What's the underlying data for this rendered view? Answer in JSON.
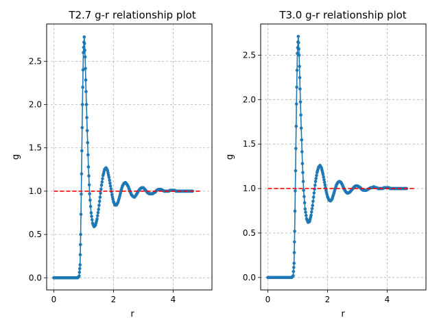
{
  "chart_data": [
    {
      "type": "line",
      "title": "T2.7 g-r relationship plot",
      "xlabel": "r",
      "ylabel": "g",
      "xlim": [
        -0.24,
        5.3
      ],
      "ylim": [
        -0.14,
        2.93
      ],
      "xticks": [
        0,
        2,
        4
      ],
      "yticks": [
        0.0,
        0.5,
        1.0,
        1.5,
        2.0,
        2.5
      ],
      "grid": true,
      "series": [
        {
          "style": "line-with-markers",
          "color": "#1f77b4",
          "x": [
            0.0,
            0.1,
            0.2,
            0.3,
            0.4,
            0.5,
            0.6,
            0.7,
            0.8,
            0.85,
            0.88,
            0.9,
            0.93,
            0.96,
            0.99,
            1.02,
            1.05,
            1.08,
            1.12,
            1.16,
            1.2,
            1.25,
            1.3,
            1.35,
            1.4,
            1.45,
            1.5,
            1.55,
            1.6,
            1.65,
            1.7,
            1.75,
            1.8,
            1.85,
            1.9,
            1.95,
            2.0,
            2.05,
            2.1,
            2.15,
            2.2,
            2.25,
            2.3,
            2.35,
            2.4,
            2.45,
            2.5,
            2.55,
            2.6,
            2.65,
            2.7,
            2.75,
            2.8,
            2.85,
            2.9,
            2.95,
            3.0,
            3.05,
            3.1,
            3.15,
            3.2,
            3.25,
            3.3,
            3.35,
            3.4,
            3.45,
            3.5,
            3.55,
            3.6,
            3.65,
            3.7,
            3.75,
            3.8,
            3.85,
            3.9,
            3.95,
            4.0,
            4.05,
            4.1,
            4.15,
            4.2,
            4.25,
            4.3,
            4.35,
            4.4,
            4.45,
            4.5,
            4.55,
            4.6,
            4.65
          ],
          "y": [
            0.0,
            0.0,
            0.0,
            0.0,
            0.0,
            0.0,
            0.0,
            0.0,
            0.0,
            0.02,
            0.15,
            0.5,
            1.2,
            2.0,
            2.6,
            2.78,
            2.55,
            2.15,
            1.7,
            1.28,
            0.97,
            0.75,
            0.63,
            0.59,
            0.61,
            0.68,
            0.79,
            0.93,
            1.07,
            1.18,
            1.25,
            1.27,
            1.24,
            1.16,
            1.06,
            0.96,
            0.88,
            0.84,
            0.84,
            0.87,
            0.93,
            1.0,
            1.06,
            1.09,
            1.1,
            1.08,
            1.05,
            1.0,
            0.96,
            0.94,
            0.93,
            0.95,
            0.98,
            1.01,
            1.03,
            1.04,
            1.04,
            1.02,
            1.0,
            0.98,
            0.97,
            0.97,
            0.97,
            0.98,
            0.99,
            1.01,
            1.02,
            1.02,
            1.02,
            1.01,
            1.0,
            1.0,
            1.0,
            1.0,
            1.01,
            1.01,
            1.01,
            1.01,
            1.0,
            1.0,
            1.0,
            1.0,
            1.0,
            1.0,
            1.0,
            1.0,
            1.0,
            1.0,
            1.0,
            1.0
          ]
        },
        {
          "style": "dashed",
          "color": "#ff0000",
          "x": [
            0.0,
            4.9
          ],
          "y": [
            1.0,
            1.0
          ]
        }
      ]
    },
    {
      "type": "line",
      "title": "T3.0 g-r relationship plot",
      "xlabel": "r",
      "ylabel": "g",
      "xlim": [
        -0.24,
        5.3
      ],
      "ylim": [
        -0.14,
        2.85
      ],
      "xticks": [
        0,
        2,
        4
      ],
      "yticks": [
        0.0,
        0.5,
        1.0,
        1.5,
        2.0,
        2.5
      ],
      "grid": true,
      "series": [
        {
          "style": "line-with-markers",
          "color": "#1f77b4",
          "x": [
            0.0,
            0.1,
            0.2,
            0.3,
            0.4,
            0.5,
            0.6,
            0.7,
            0.8,
            0.85,
            0.88,
            0.9,
            0.93,
            0.96,
            0.99,
            1.02,
            1.05,
            1.08,
            1.12,
            1.16,
            1.2,
            1.25,
            1.3,
            1.35,
            1.4,
            1.45,
            1.5,
            1.55,
            1.6,
            1.65,
            1.7,
            1.75,
            1.8,
            1.85,
            1.9,
            1.95,
            2.0,
            2.05,
            2.1,
            2.15,
            2.2,
            2.25,
            2.3,
            2.35,
            2.4,
            2.45,
            2.5,
            2.55,
            2.6,
            2.65,
            2.7,
            2.75,
            2.8,
            2.85,
            2.9,
            2.95,
            3.0,
            3.05,
            3.1,
            3.15,
            3.2,
            3.25,
            3.3,
            3.35,
            3.4,
            3.45,
            3.5,
            3.55,
            3.6,
            3.65,
            3.7,
            3.75,
            3.8,
            3.85,
            3.9,
            3.95,
            4.0,
            4.05,
            4.1,
            4.15,
            4.2,
            4.25,
            4.3,
            4.35,
            4.4,
            4.45,
            4.5,
            4.55,
            4.6,
            4.65
          ],
          "y": [
            0.0,
            0.0,
            0.0,
            0.0,
            0.0,
            0.0,
            0.0,
            0.0,
            0.0,
            0.02,
            0.16,
            0.52,
            1.2,
            1.95,
            2.52,
            2.71,
            2.5,
            2.12,
            1.68,
            1.28,
            0.98,
            0.77,
            0.66,
            0.62,
            0.63,
            0.7,
            0.81,
            0.95,
            1.08,
            1.18,
            1.24,
            1.26,
            1.23,
            1.16,
            1.07,
            0.98,
            0.91,
            0.87,
            0.86,
            0.88,
            0.93,
            0.99,
            1.04,
            1.07,
            1.08,
            1.07,
            1.04,
            1.0,
            0.97,
            0.95,
            0.95,
            0.96,
            0.98,
            1.0,
            1.02,
            1.03,
            1.03,
            1.02,
            1.01,
            0.99,
            0.98,
            0.98,
            0.98,
            0.99,
            1.0,
            1.01,
            1.01,
            1.02,
            1.01,
            1.01,
            1.0,
            1.0,
            1.0,
            1.0,
            1.01,
            1.01,
            1.01,
            1.01,
            1.0,
            1.0,
            1.0,
            1.0,
            1.0,
            1.0,
            1.0,
            1.0,
            1.0,
            1.0,
            1.0,
            1.0
          ]
        },
        {
          "style": "dashed",
          "color": "#ff0000",
          "x": [
            0.0,
            4.9
          ],
          "y": [
            1.0,
            1.0
          ]
        }
      ]
    }
  ]
}
